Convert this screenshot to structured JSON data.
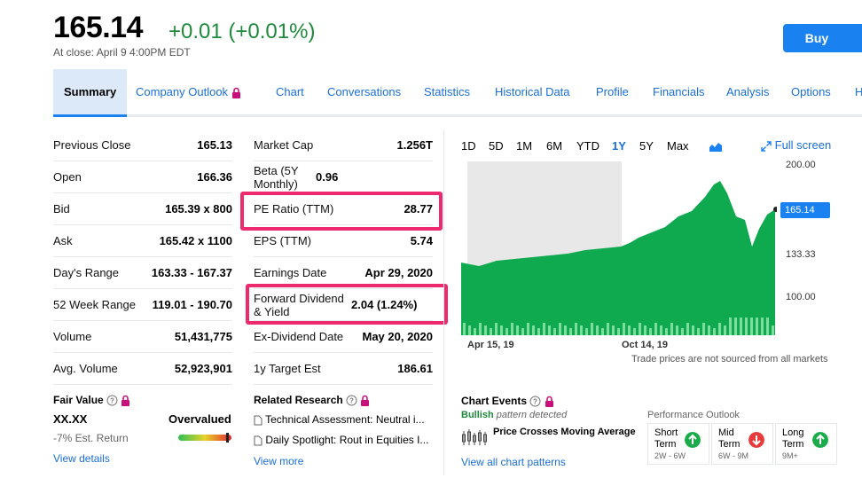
{
  "quote": {
    "price": "165.14",
    "change": "+0.01 (+0.01%)",
    "close_note": "At close: April 9 4:00PM EDT",
    "buy_label": "Buy"
  },
  "tabs": [
    {
      "label": "Summary"
    },
    {
      "label": "Company Outlook"
    },
    {
      "label": "Chart"
    },
    {
      "label": "Conversations"
    },
    {
      "label": "Statistics"
    },
    {
      "label": "Historical Data"
    },
    {
      "label": "Profile"
    },
    {
      "label": "Financials"
    },
    {
      "label": "Analysis"
    },
    {
      "label": "Options"
    },
    {
      "label": "H"
    }
  ],
  "stats_left": [
    {
      "label": "Previous Close",
      "value": "165.13"
    },
    {
      "label": "Open",
      "value": "166.36"
    },
    {
      "label": "Bid",
      "value": "165.39 x 800"
    },
    {
      "label": "Ask",
      "value": "165.42 x 1100"
    },
    {
      "label": "Day's Range",
      "value": "163.33 - 167.37"
    },
    {
      "label": "52 Week Range",
      "value": "119.01 - 190.70"
    },
    {
      "label": "Volume",
      "value": "51,431,775"
    },
    {
      "label": "Avg. Volume",
      "value": "52,923,901"
    }
  ],
  "stats_right": [
    {
      "label": "Market Cap",
      "value": "1.256T"
    },
    {
      "label": "Beta (5Y Monthly)",
      "value": "0.96"
    },
    {
      "label": "PE Ratio (TTM)",
      "value": "28.77"
    },
    {
      "label": "EPS (TTM)",
      "value": "5.74"
    },
    {
      "label": "Earnings Date",
      "value": "Apr 29, 2020"
    },
    {
      "label": "Forward Dividend & Yield",
      "value": "2.04 (1.24%)"
    },
    {
      "label": "Ex-Dividend Date",
      "value": "May 20, 2020"
    },
    {
      "label": "1y Target Est",
      "value": "186.61"
    }
  ],
  "fair_value": {
    "title": "Fair Value",
    "value": "XX.XX",
    "verdict": "Overvalued",
    "est_return": "-7% Est. Return",
    "link": "View details"
  },
  "research": {
    "title": "Related Research",
    "items": [
      "Technical Assessment: Neutral i...",
      "Daily Spotlight: Rout in Equities I..."
    ],
    "link": "View more"
  },
  "chart": {
    "ranges": [
      "1D",
      "5D",
      "1M",
      "6M",
      "YTD",
      "1Y",
      "5Y",
      "Max"
    ],
    "selected_range": "1Y",
    "fullscreen_label": "Full screen",
    "y_labels": [
      "200.00",
      "133.33",
      "100.00"
    ],
    "current_price_tag": "165.14",
    "x_labels": [
      "Apr 15, 19",
      "Oct 14, 19"
    ],
    "note": "Trade prices are not sourced from all markets",
    "colors": {
      "area": "#0fa94f",
      "highlight_bg": "#e8e8e8",
      "accent": "#1a82f0"
    }
  },
  "chart_events": {
    "title": "Chart Events",
    "bullish": "Bullish",
    "pattern_text": "pattern detected",
    "pattern_name": "Price Crosses Moving Average",
    "link": "View all chart patterns"
  },
  "performance": {
    "title": "Performance Outlook",
    "terms": [
      {
        "name1": "Short",
        "name2": "Term",
        "range": "2W - 6W",
        "direction": "up"
      },
      {
        "name1": "Mid",
        "name2": "Term",
        "range": "6W - 9M",
        "direction": "down"
      },
      {
        "name1": "Long",
        "name2": "Term",
        "range": "9M+",
        "direction": "up"
      }
    ]
  }
}
